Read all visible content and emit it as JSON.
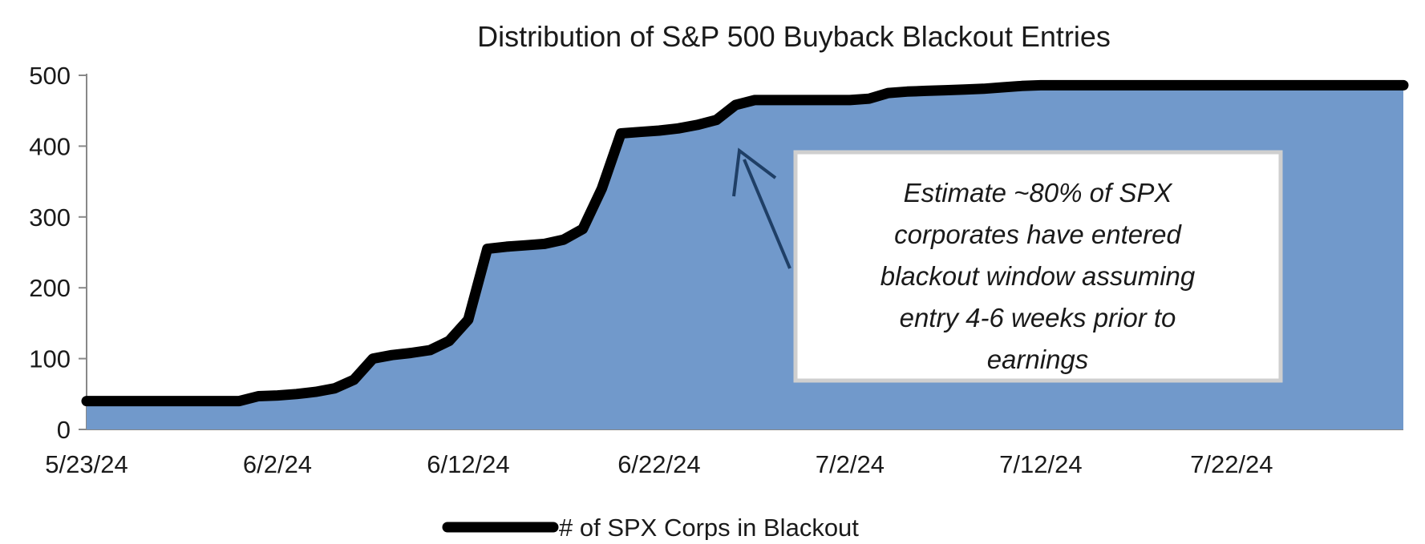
{
  "chart_data": {
    "type": "area",
    "title": "Distribution of S&P 500 Buyback Blackout Entries",
    "xlabel": "",
    "ylabel": "",
    "ylim": [
      0,
      500
    ],
    "yticks": [
      "0",
      "100",
      "200",
      "300",
      "400",
      "500"
    ],
    "xlim": [
      "5/23/24",
      "7/31/24"
    ],
    "xtick_labels": [
      "5/23/24",
      "6/2/24",
      "6/12/24",
      "6/22/24",
      "7/2/24",
      "7/12/24",
      "7/22/24"
    ],
    "grid": false,
    "legend": "bottom",
    "colors": {
      "fill": "#7199cb",
      "line": "#000000",
      "arrow": "#1f3f66"
    },
    "series": [
      {
        "name": "# of SPX Corps in Blackout",
        "x": [
          "5/23/24",
          "5/24/24",
          "5/25/24",
          "5/26/24",
          "5/27/24",
          "5/28/24",
          "5/29/24",
          "5/30/24",
          "5/31/24",
          "6/1/24",
          "6/2/24",
          "6/3/24",
          "6/4/24",
          "6/5/24",
          "6/6/24",
          "6/7/24",
          "6/8/24",
          "6/9/24",
          "6/10/24",
          "6/11/24",
          "6/12/24",
          "6/13/24",
          "6/14/24",
          "6/15/24",
          "6/16/24",
          "6/17/24",
          "6/18/24",
          "6/19/24",
          "6/20/24",
          "6/21/24",
          "6/22/24",
          "6/23/24",
          "6/24/24",
          "6/25/24",
          "6/26/24",
          "6/27/24",
          "6/28/24",
          "6/29/24",
          "6/30/24",
          "7/1/24",
          "7/2/24",
          "7/3/24",
          "7/4/24",
          "7/5/24",
          "7/6/24",
          "7/7/24",
          "7/8/24",
          "7/9/24",
          "7/10/24",
          "7/11/24",
          "7/12/24",
          "7/13/24",
          "7/14/24",
          "7/15/24",
          "7/16/24",
          "7/17/24",
          "7/18/24",
          "7/19/24",
          "7/20/24",
          "7/21/24",
          "7/22/24",
          "7/23/24",
          "7/24/24",
          "7/25/24",
          "7/26/24",
          "7/27/24",
          "7/28/24",
          "7/29/24",
          "7/30/24",
          "7/31/24"
        ],
        "values": [
          40,
          40,
          40,
          40,
          40,
          40,
          40,
          40,
          40,
          47,
          48,
          50,
          53,
          58,
          70,
          100,
          105,
          108,
          112,
          125,
          155,
          255,
          258,
          260,
          262,
          268,
          283,
          340,
          418,
          420,
          422,
          425,
          430,
          437,
          458,
          465,
          465,
          465,
          465,
          465,
          465,
          467,
          475,
          477,
          478,
          479,
          480,
          481,
          483,
          485,
          486,
          486,
          486,
          486,
          486,
          486,
          486,
          486,
          486,
          486,
          486,
          486,
          486,
          486,
          486,
          486,
          486,
          486,
          486,
          486
        ]
      }
    ],
    "annotation": {
      "lines": [
        "Estimate ~80% of SPX",
        "corporates have entered",
        "blackout window assuming",
        "entry 4-6 weeks prior to",
        "earnings"
      ]
    }
  }
}
